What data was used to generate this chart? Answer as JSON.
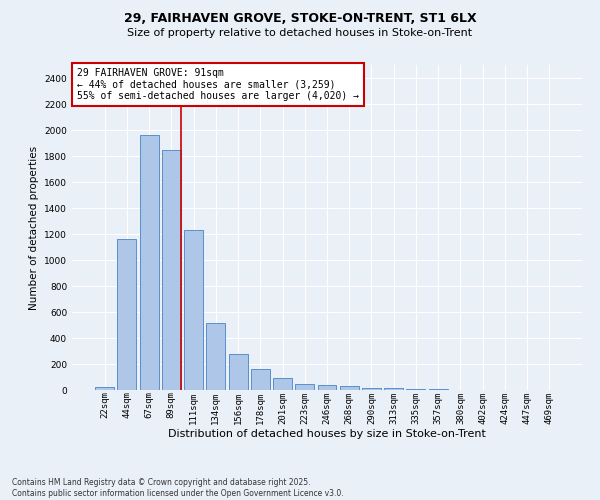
{
  "title_line1": "29, FAIRHAVEN GROVE, STOKE-ON-TRENT, ST1 6LX",
  "title_line2": "Size of property relative to detached houses in Stoke-on-Trent",
  "xlabel": "Distribution of detached houses by size in Stoke-on-Trent",
  "ylabel": "Number of detached properties",
  "bar_labels": [
    "22sqm",
    "44sqm",
    "67sqm",
    "89sqm",
    "111sqm",
    "134sqm",
    "156sqm",
    "178sqm",
    "201sqm",
    "223sqm",
    "246sqm",
    "268sqm",
    "290sqm",
    "313sqm",
    "335sqm",
    "357sqm",
    "380sqm",
    "402sqm",
    "424sqm",
    "447sqm",
    "469sqm"
  ],
  "bar_values": [
    25,
    1160,
    1960,
    1850,
    1230,
    515,
    275,
    158,
    90,
    50,
    42,
    27,
    18,
    13,
    8,
    5,
    3,
    2,
    2,
    2,
    2
  ],
  "bar_color": "#aec6e8",
  "bar_edge_color": "#5b8fc9",
  "background_color": "#eaf0f8",
  "grid_color": "#ffffff",
  "annotation_text": "29 FAIRHAVEN GROVE: 91sqm\n← 44% of detached houses are smaller (3,259)\n55% of semi-detached houses are larger (4,020) →",
  "annotation_box_color": "#ffffff",
  "annotation_box_edge_color": "#cc0000",
  "red_line_color": "#cc0000",
  "red_line_index": 3,
  "ylim": [
    0,
    2500
  ],
  "yticks": [
    0,
    200,
    400,
    600,
    800,
    1000,
    1200,
    1400,
    1600,
    1800,
    2000,
    2200,
    2400
  ],
  "footer_line1": "Contains HM Land Registry data © Crown copyright and database right 2025.",
  "footer_line2": "Contains public sector information licensed under the Open Government Licence v3.0.",
  "title1_fontsize": 9,
  "title2_fontsize": 8,
  "xlabel_fontsize": 8,
  "ylabel_fontsize": 7.5,
  "tick_fontsize": 6.5,
  "annot_fontsize": 7,
  "footer_fontsize": 5.5
}
